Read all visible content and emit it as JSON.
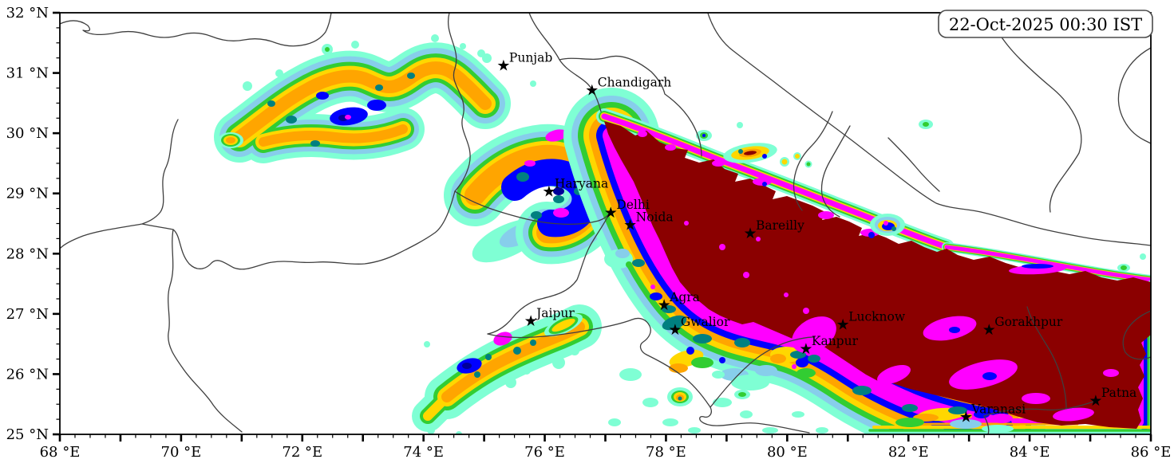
{
  "timestamp_box": {
    "label": "22-Oct-2025 00:30 IST"
  },
  "axes": {
    "x": {
      "unit": "°E",
      "min": 68,
      "max": 86,
      "major_step": 1,
      "minor_step": 0.25,
      "tick_labels": [
        "68 °E",
        "70 °E",
        "72 °E",
        "74 °E",
        "76 °E",
        "78 °E",
        "80 °E",
        "82 °E",
        "84 °E",
        "86 °E"
      ],
      "label_lons": [
        68,
        70,
        72,
        74,
        76,
        78,
        80,
        82,
        84,
        86
      ]
    },
    "y": {
      "unit": "°N",
      "min": 25,
      "max": 32,
      "major_step": 1,
      "minor_step": 0.25,
      "tick_labels": [
        "25 °N",
        "26 °N",
        "27 °N",
        "28 °N",
        "29 °N",
        "30 °N",
        "31 °N",
        "32 °N"
      ],
      "label_lats": [
        25,
        26,
        27,
        28,
        29,
        30,
        31,
        32
      ]
    }
  },
  "cities": [
    {
      "name": "Punjab",
      "lon": 75.32,
      "lat": 31.13
    },
    {
      "name": "Chandigarh",
      "lon": 76.78,
      "lat": 30.72
    },
    {
      "name": "Haryana",
      "lon": 76.07,
      "lat": 29.04
    },
    {
      "name": "Delhi",
      "lon": 77.09,
      "lat": 28.69
    },
    {
      "name": "Noida",
      "lon": 77.41,
      "lat": 28.49
    },
    {
      "name": "Bareilly",
      "lon": 79.39,
      "lat": 28.35
    },
    {
      "name": "Jaipur",
      "lon": 75.77,
      "lat": 26.89
    },
    {
      "name": "Agra",
      "lon": 77.97,
      "lat": 27.16
    },
    {
      "name": "Gwalior",
      "lon": 78.15,
      "lat": 26.75
    },
    {
      "name": "Lucknow",
      "lon": 80.92,
      "lat": 26.83
    },
    {
      "name": "Kanpur",
      "lon": 80.31,
      "lat": 26.43
    },
    {
      "name": "Gorakhpur",
      "lon": 83.33,
      "lat": 26.75
    },
    {
      "name": "Varanasi",
      "lon": 82.95,
      "lat": 25.3
    },
    {
      "name": "Patna",
      "lon": 85.09,
      "lat": 25.57
    }
  ],
  "palette": {
    "rain_colors_low_to_high": [
      "#D9FBF0",
      "#7FFFD4",
      "#87CEEB",
      "#32CD32",
      "#008080",
      "#FFD700",
      "#FFA500",
      "#0000FF",
      "#FF00FF",
      "#8B0000"
    ],
    "boundary_line": "#3F3F3F",
    "frame": "#000000",
    "background": "#FFFFFF",
    "marker": "#000000"
  }
}
